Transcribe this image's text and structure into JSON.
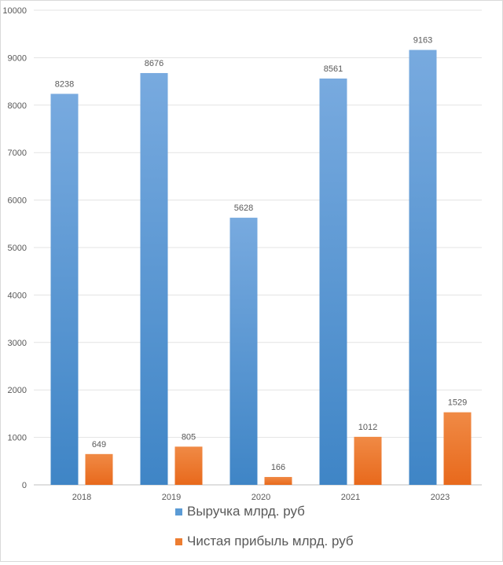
{
  "chart_data": {
    "type": "bar",
    "categories": [
      "2018",
      "2019",
      "2020",
      "2021",
      "2023"
    ],
    "series": [
      {
        "name": "Выручка млрд. руб",
        "values": [
          8238,
          8676,
          5628,
          8561,
          9163
        ],
        "color": "#5b9bd5"
      },
      {
        "name": "Чистая прибыль млрд. руб",
        "values": [
          649,
          805,
          166,
          1012,
          1529
        ],
        "color": "#ed7d31"
      }
    ],
    "ylim": [
      0,
      10000
    ],
    "yticks": [
      0,
      1000,
      2000,
      3000,
      4000,
      5000,
      6000,
      7000,
      8000,
      9000,
      10000
    ],
    "grid": true,
    "legend_position": "bottom",
    "data_labels": true
  }
}
